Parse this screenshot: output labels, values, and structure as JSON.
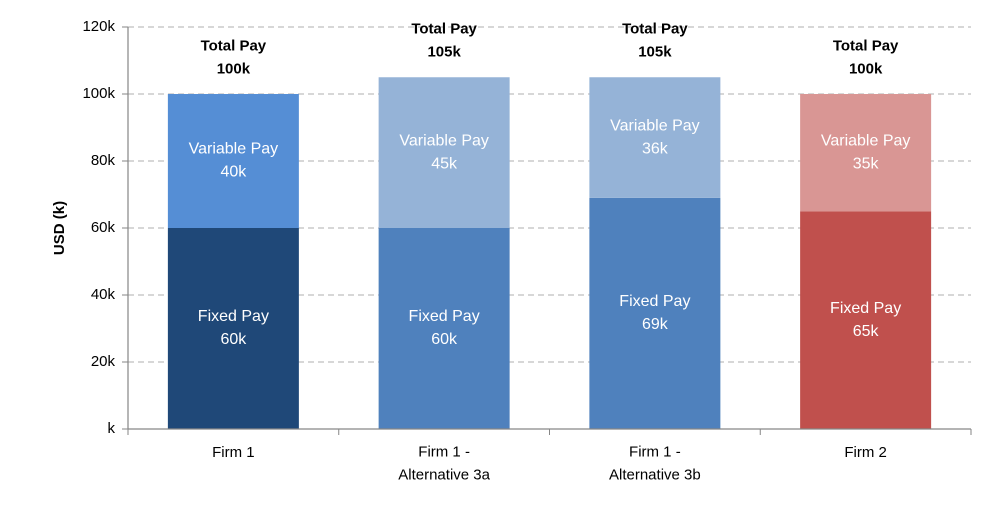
{
  "chart_data": {
    "type": "bar",
    "stacked": true,
    "categories": [
      "Firm 1",
      "Firm 1 -\nAlternative 3a",
      "Firm 1 -\nAlternative 3b",
      "Firm 2"
    ],
    "series": [
      {
        "name": "Fixed Pay",
        "values": [
          60,
          60,
          69,
          65
        ],
        "colors": [
          "#1f4878",
          "#4f81bd",
          "#4f81bd",
          "#c0504d"
        ],
        "labels": [
          "Fixed Pay\n60k",
          "Fixed Pay\n60k",
          "Fixed Pay\n69k",
          "Fixed Pay\n65k"
        ]
      },
      {
        "name": "Variable Pay",
        "values": [
          40,
          45,
          36,
          35
        ],
        "colors": [
          "#558ed5",
          "#95b3d7",
          "#95b3d7",
          "#d99694"
        ],
        "labels": [
          "Variable Pay\n40k",
          "Variable Pay\n45k",
          "Variable Pay\n36k",
          "Variable Pay\n35k"
        ]
      }
    ],
    "totals": {
      "values": [
        100,
        105,
        105,
        100
      ],
      "labels": [
        "Total Pay\n100k",
        "Total Pay\n105k",
        "Total Pay\n105k",
        "Total Pay\n100k"
      ]
    },
    "ylabel": "USD (k)",
    "xlabel": "",
    "ylim": [
      0,
      120
    ],
    "yticks": [
      0,
      20,
      40,
      60,
      80,
      100,
      120
    ],
    "ytick_labels": [
      "k",
      "20k",
      "40k",
      "60k",
      "80k",
      "100k",
      "120k"
    ],
    "grid": true,
    "legend": "none",
    "grid_color": "#bfbfbf",
    "axis_color": "#868686",
    "text_color": "#000000",
    "segment_text_color": "#ffffff"
  }
}
